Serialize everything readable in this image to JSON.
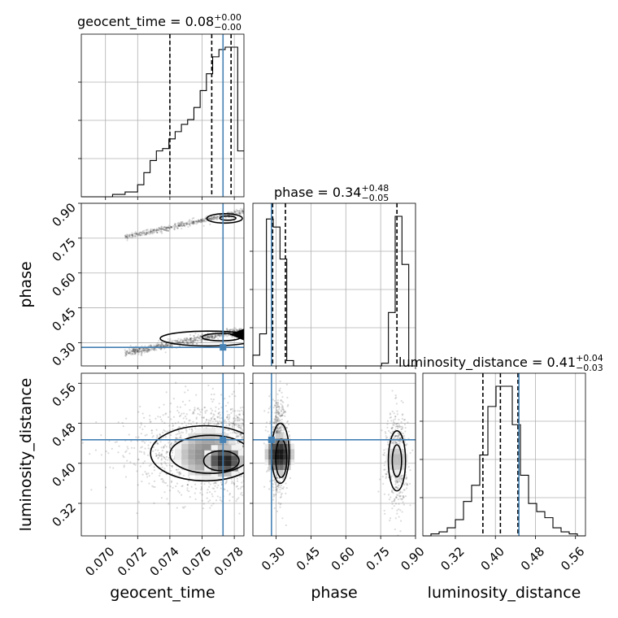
{
  "chart_data": {
    "type": "corner",
    "parameters": [
      "geocent_time",
      "phase",
      "luminosity_distance"
    ],
    "truths": {
      "geocent_time": 0.0773,
      "phase": 0.28,
      "luminosity_distance": 0.447
    },
    "ranges": {
      "geocent_time": [
        0.0685,
        0.0786
      ],
      "phase": [
        0.2,
        0.9
      ],
      "luminosity_distance": [
        0.255,
        0.58
      ]
    },
    "ticks": {
      "geocent_time": [
        "0.070",
        "0.072",
        "0.074",
        "0.076",
        "0.078"
      ],
      "phase": [
        "0.30",
        "0.45",
        "0.60",
        "0.75",
        "0.90"
      ],
      "luminosity_distance": [
        "0.32",
        "0.40",
        "0.48",
        "0.56"
      ]
    },
    "titles": {
      "geocent_time": {
        "prefix": "geocent_time = 0.08",
        "plus": "+0.00",
        "minus": "−0.00"
      },
      "phase": {
        "prefix": "phase = 0.34",
        "plus": "+0.48",
        "minus": "−0.05"
      },
      "luminosity_distance": {
        "prefix": "luminosity_distance = 0.41",
        "plus": "+0.04",
        "minus": "−0.03"
      }
    },
    "quantiles": {
      "geocent_time": [
        0.074,
        0.0766,
        0.0778
      ],
      "phase": [
        0.285,
        0.34,
        0.82
      ],
      "luminosity_distance": [
        0.375,
        0.41,
        0.445
      ]
    },
    "histograms": {
      "geocent_time": {
        "edges_range": [
          0.0685,
          0.0786
        ],
        "counts": [
          0,
          0,
          0,
          0,
          0,
          1,
          1,
          2,
          2,
          5,
          10,
          15,
          19,
          20,
          24,
          27,
          30,
          32,
          37,
          44,
          51,
          58,
          61,
          62,
          62,
          19
        ]
      },
      "phase": {
        "edges_range": [
          0.2,
          0.9
        ],
        "counts": [
          4,
          12,
          55,
          52,
          40,
          2,
          0,
          0,
          0,
          0,
          0,
          0,
          0,
          0,
          0,
          0,
          0,
          0,
          0,
          1,
          20,
          56,
          38,
          0
        ]
      },
      "luminosity_distance": {
        "edges_range": [
          0.255,
          0.58
        ],
        "counts": [
          0,
          1,
          2,
          4,
          8,
          17,
          25,
          40,
          64,
          74,
          74,
          55,
          30,
          16,
          12,
          9,
          4,
          2,
          1,
          0
        ]
      }
    }
  }
}
